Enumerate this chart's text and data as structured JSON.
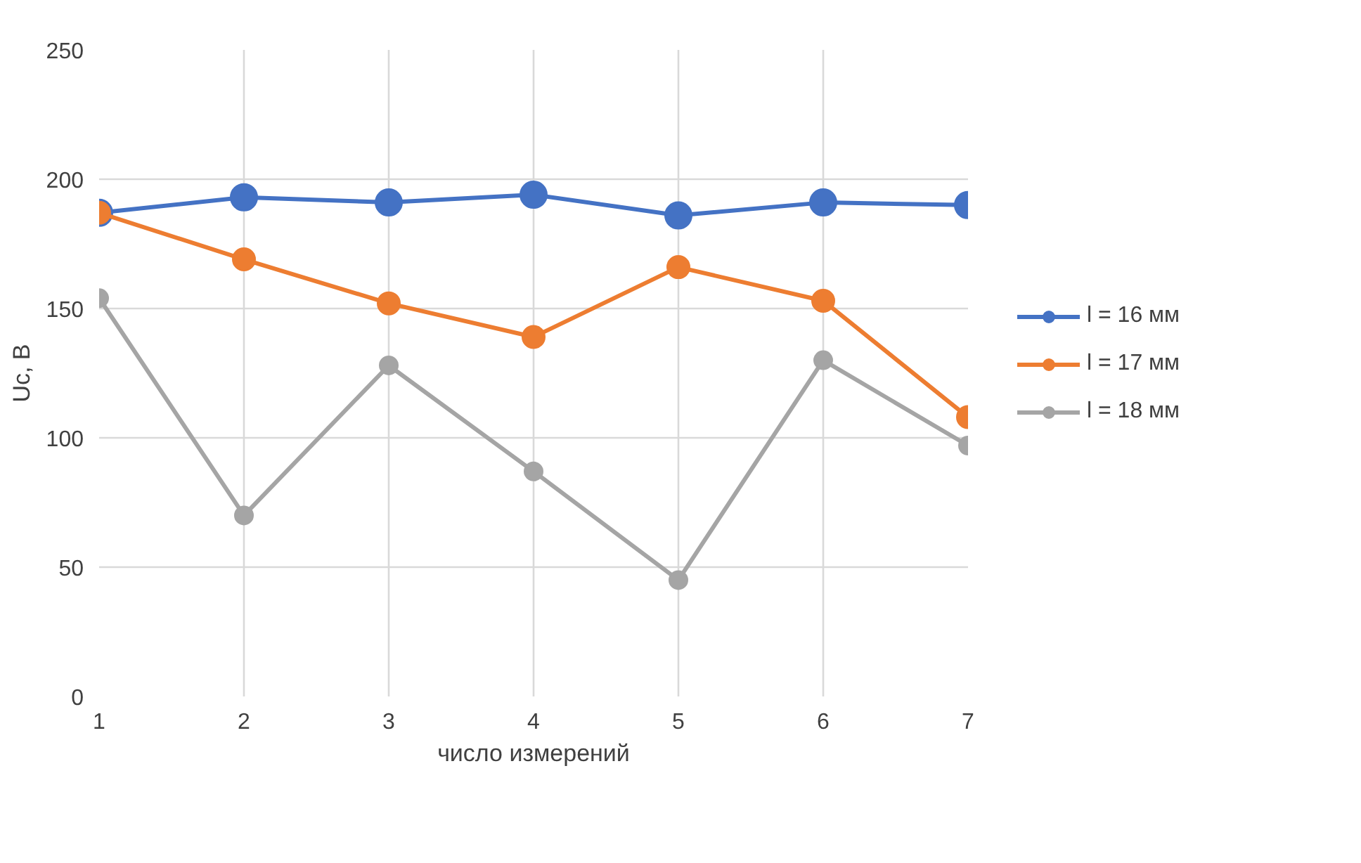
{
  "chart_data": {
    "type": "line",
    "xlabel": "число измерений",
    "ylabel": "Uc, В",
    "x": [
      1,
      2,
      3,
      4,
      5,
      6,
      7
    ],
    "xlim": [
      1,
      7
    ],
    "xticks": [
      1,
      2,
      3,
      4,
      5,
      6,
      7
    ],
    "ylim": [
      0,
      250
    ],
    "yticks": [
      0,
      50,
      100,
      150,
      200,
      250
    ],
    "grid": true,
    "legend": "right",
    "marker": "circle",
    "line_style": "solid",
    "series": [
      {
        "name": "l = 16 мм",
        "color": "#4472c4",
        "values": [
          187,
          193,
          191,
          194,
          186,
          191,
          190
        ]
      },
      {
        "name": "l = 17 мм",
        "color": "#ed7d31",
        "values": [
          187,
          169,
          152,
          139,
          166,
          153,
          108
        ]
      },
      {
        "name": "l = 18 мм",
        "color": "#a5a5a5",
        "values": [
          154,
          70,
          128,
          87,
          45,
          130,
          97
        ]
      }
    ]
  }
}
